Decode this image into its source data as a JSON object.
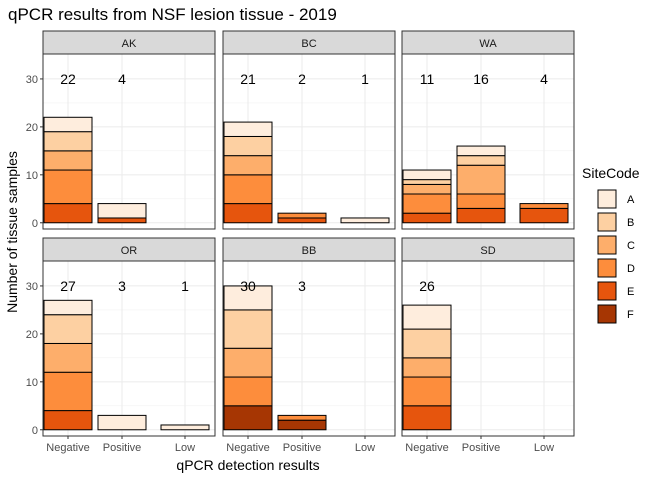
{
  "chart_data": {
    "type": "bar",
    "stacked": true,
    "title": "qPCR results from NSF lesion tissue - 2019",
    "xlabel": "qPCR detection results",
    "ylabel": "Number of tissue samples",
    "categories": [
      "Negative",
      "Positive",
      "Low"
    ],
    "ylim": [
      0,
      32
    ],
    "yticks": [
      0,
      10,
      20,
      30
    ],
    "grid": true,
    "legend": {
      "title": "SiteCode",
      "position": "right",
      "entries": [
        {
          "label": "A",
          "color": "#feeddd"
        },
        {
          "label": "B",
          "color": "#fdd0a2"
        },
        {
          "label": "C",
          "color": "#fdae6b"
        },
        {
          "label": "D",
          "color": "#fd8d3c"
        },
        {
          "label": "E",
          "color": "#e6550d"
        },
        {
          "label": "F",
          "color": "#a63603"
        }
      ]
    },
    "panels": [
      {
        "name": "AK",
        "totals": [
          22,
          4,
          null
        ],
        "stacks": {
          "Negative": {
            "E": 4,
            "D": 7,
            "C": 4,
            "B": 4,
            "A": 3
          },
          "Positive": {
            "E": 1,
            "A": 3
          },
          "Low": {}
        }
      },
      {
        "name": "BC",
        "totals": [
          21,
          2,
          1
        ],
        "stacks": {
          "Negative": {
            "E": 4,
            "D": 6,
            "C": 4,
            "B": 4,
            "A": 3
          },
          "Positive": {
            "E": 1,
            "D": 1
          },
          "Low": {
            "A": 1
          }
        }
      },
      {
        "name": "WA",
        "totals": [
          11,
          16,
          4
        ],
        "stacks": {
          "Negative": {
            "E": 2,
            "D": 4,
            "C": 2,
            "B": 1,
            "A": 2
          },
          "Positive": {
            "E": 3,
            "D": 3,
            "C": 6,
            "B": 2,
            "A": 2
          },
          "Low": {
            "E": 3,
            "D": 1
          }
        }
      },
      {
        "name": "OR",
        "totals": [
          27,
          3,
          1
        ],
        "stacks": {
          "Negative": {
            "E": 4,
            "D": 8,
            "C": 6,
            "B": 6,
            "A": 3
          },
          "Positive": {
            "A": 3
          },
          "Low": {
            "A": 1
          }
        }
      },
      {
        "name": "BB",
        "totals": [
          30,
          3,
          null
        ],
        "stacks": {
          "Negative": {
            "F": 5,
            "D": 6,
            "C": 6,
            "B": 8,
            "A": 5
          },
          "Positive": {
            "F": 2,
            "D": 1
          },
          "Low": {}
        }
      },
      {
        "name": "SD",
        "totals": [
          26,
          null,
          null
        ],
        "stacks": {
          "Negative": {
            "E": 5,
            "D": 6,
            "C": 4,
            "B": 6,
            "A": 5
          },
          "Positive": {},
          "Low": {}
        }
      }
    ]
  }
}
